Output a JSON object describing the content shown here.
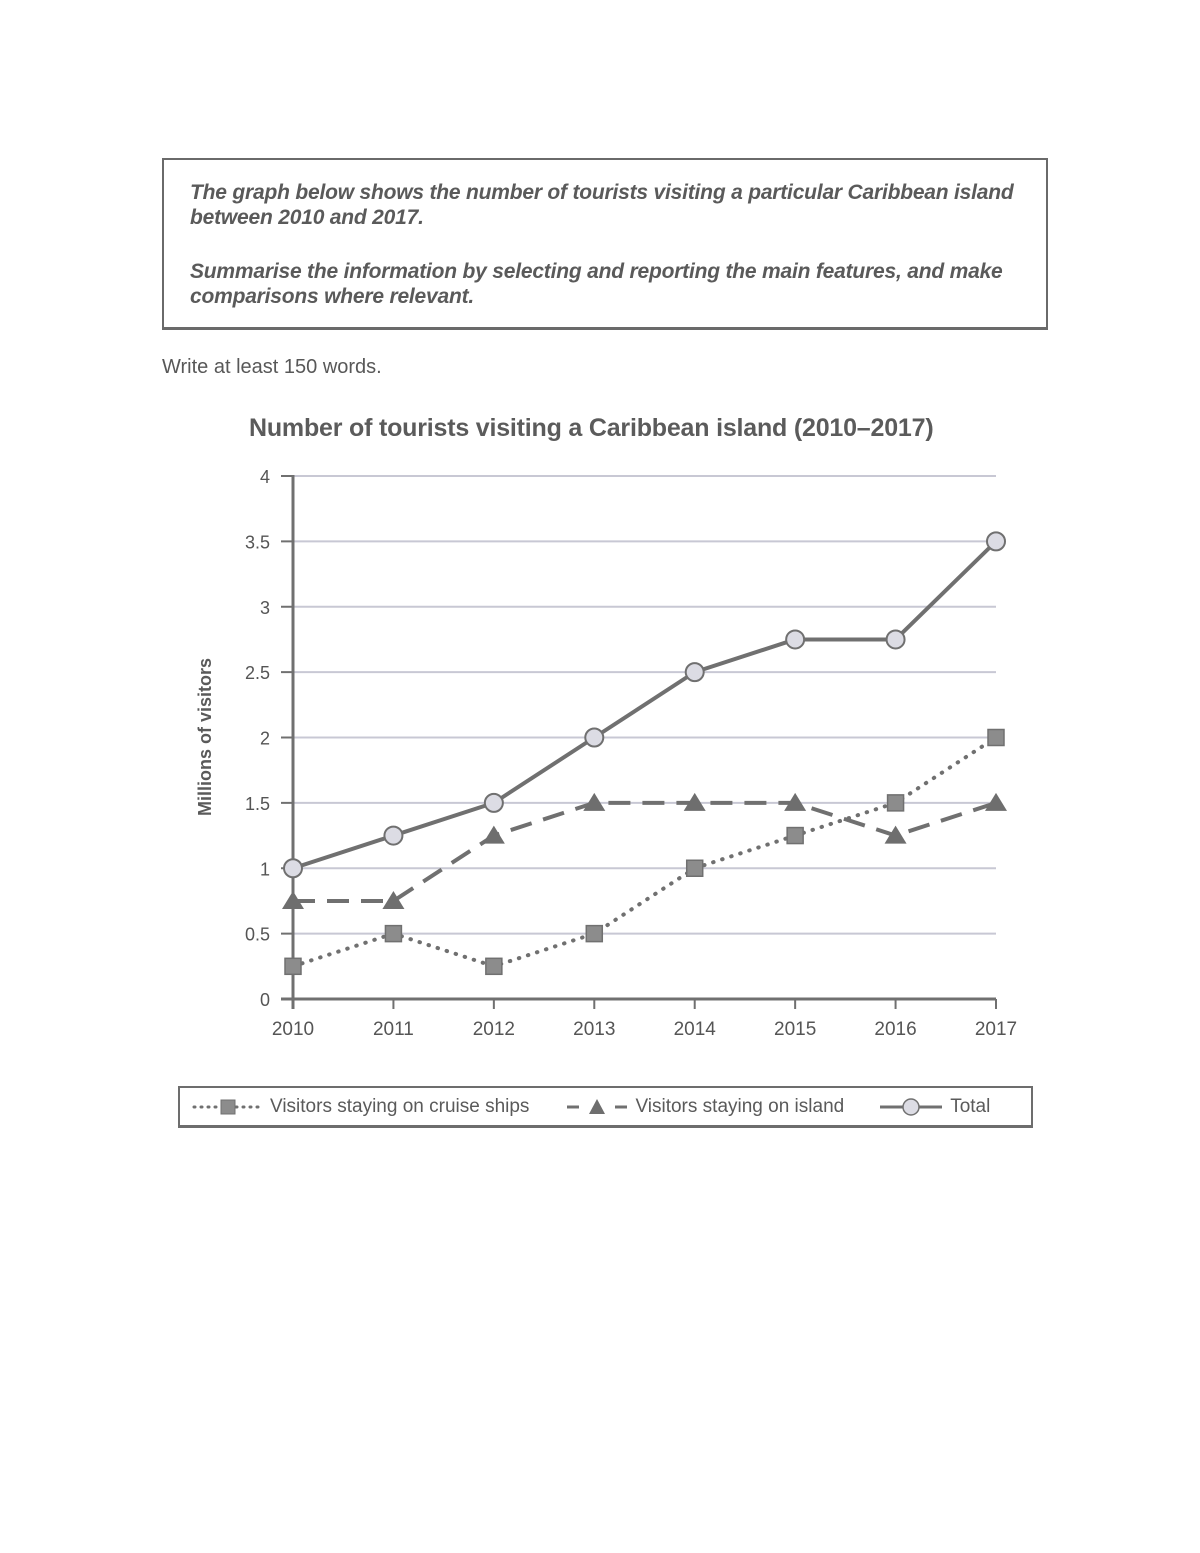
{
  "task": {
    "paragraph1": "The graph below shows the number of tourists visiting a particular Caribbean island between 2010 and 2017.",
    "paragraph2": "Summarise the information by selecting and reporting the main features, and make comparisons where relevant."
  },
  "word_note": "Write at least 150 words.",
  "legend": {
    "cruise": "Visitors staying on cruise ships",
    "island": "Visitors staying on island",
    "total": "Total"
  },
  "colors": {
    "line": "#707070",
    "marker_fill_square": "#8c8c8c",
    "marker_fill_circle": "#dcdce4",
    "grid": "#c8c8d4",
    "text": "#555555"
  },
  "chart_data": {
    "type": "line",
    "title": "Number of tourists visiting a Caribbean island (2010–2017)",
    "xlabel": "",
    "ylabel": "Millions of visitors",
    "ylim": [
      0,
      4
    ],
    "yticks": [
      "0",
      "0.5",
      "1",
      "1.5",
      "2",
      "2.5",
      "3",
      "3.5",
      "4"
    ],
    "categories": [
      "2010",
      "2011",
      "2012",
      "2013",
      "2014",
      "2015",
      "2016",
      "2017"
    ],
    "grid": true,
    "legend_position": "bottom",
    "series": [
      {
        "name": "Visitors staying on cruise ships",
        "style": "dotted",
        "marker": "square",
        "values": [
          0.25,
          0.5,
          0.25,
          0.5,
          1.0,
          1.25,
          1.5,
          2.0
        ]
      },
      {
        "name": "Visitors staying on island",
        "style": "dashed",
        "marker": "triangle",
        "values": [
          0.75,
          0.75,
          1.25,
          1.5,
          1.5,
          1.5,
          1.25,
          1.5
        ]
      },
      {
        "name": "Total",
        "style": "solid",
        "marker": "circle",
        "values": [
          1.0,
          1.25,
          1.5,
          2.0,
          2.5,
          2.75,
          2.75,
          3.5
        ]
      }
    ]
  }
}
